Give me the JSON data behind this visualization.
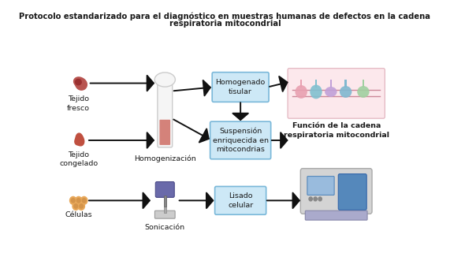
{
  "title_line1": "Protocolo estandarizado para el diagnóstico en muestras humanas de defectos en la cadena",
  "title_line2": "respiratoria mitocondrial",
  "background_color": "#ffffff",
  "box_color": "#cde8f6",
  "box_edge_color": "#7ab8d9",
  "arrow_color": "#111111",
  "text_color": "#1a1a1a",
  "font_size_title": 7.2,
  "font_size_label": 6.8,
  "font_size_box": 6.8,
  "label_bold": false,
  "homogenizacion_label": "Homogenización",
  "sonicacion_label": "Sonicación",
  "tejido_fresco_label": "Tejido\nfresco",
  "tejido_congelado_label": "Tejido\ncongelado",
  "celulas_label": "Células",
  "homogenado_text": "Homogenado\ntisular",
  "suspension_text": "Suspensión\nenriquecida en\nmitocondrias",
  "lisado_text": "Lisado\ncelular",
  "funcion_text": "Función de la cadena\nrespiratoria mitocondrial"
}
